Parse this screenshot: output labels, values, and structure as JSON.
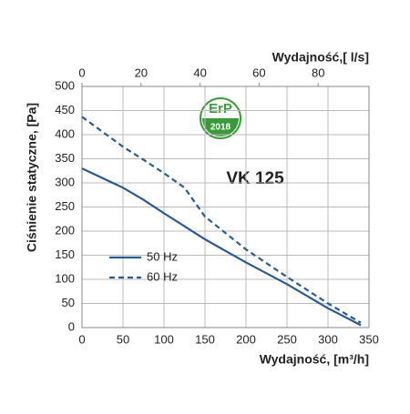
{
  "chart_data": {
    "type": "line",
    "title": "VK 125",
    "badge": {
      "top": "ErP",
      "bottom": "2018"
    },
    "x_label": "Wydajność, [m³/h]",
    "x2_label": "Wydajność,[ l/s]",
    "y_label": "Ciśnienie statyczne, [Pa]",
    "x": [
      0,
      50,
      75,
      100,
      125,
      150,
      200,
      250,
      300,
      340
    ],
    "series": [
      {
        "name": "50 Hz",
        "color": "#2b5a92",
        "style": "solid",
        "values": [
          330,
          290,
          265,
          237,
          210,
          183,
          135,
          90,
          40,
          5
        ]
      },
      {
        "name": "60 Hz",
        "color": "#2b5a92",
        "style": "dashed",
        "values": [
          437,
          375,
          348,
          320,
          290,
          230,
          162,
          105,
          50,
          10
        ]
      }
    ],
    "xlim": [
      0,
      350
    ],
    "xticks": [
      0,
      50,
      100,
      150,
      200,
      250,
      300,
      350
    ],
    "x2lim": [
      0,
      97.22
    ],
    "x2ticks": [
      0,
      20,
      40,
      60,
      80
    ],
    "ylim": [
      0,
      500
    ],
    "yticks": [
      0,
      50,
      100,
      150,
      200,
      250,
      300,
      350,
      400,
      450,
      500
    ],
    "grid": true
  }
}
